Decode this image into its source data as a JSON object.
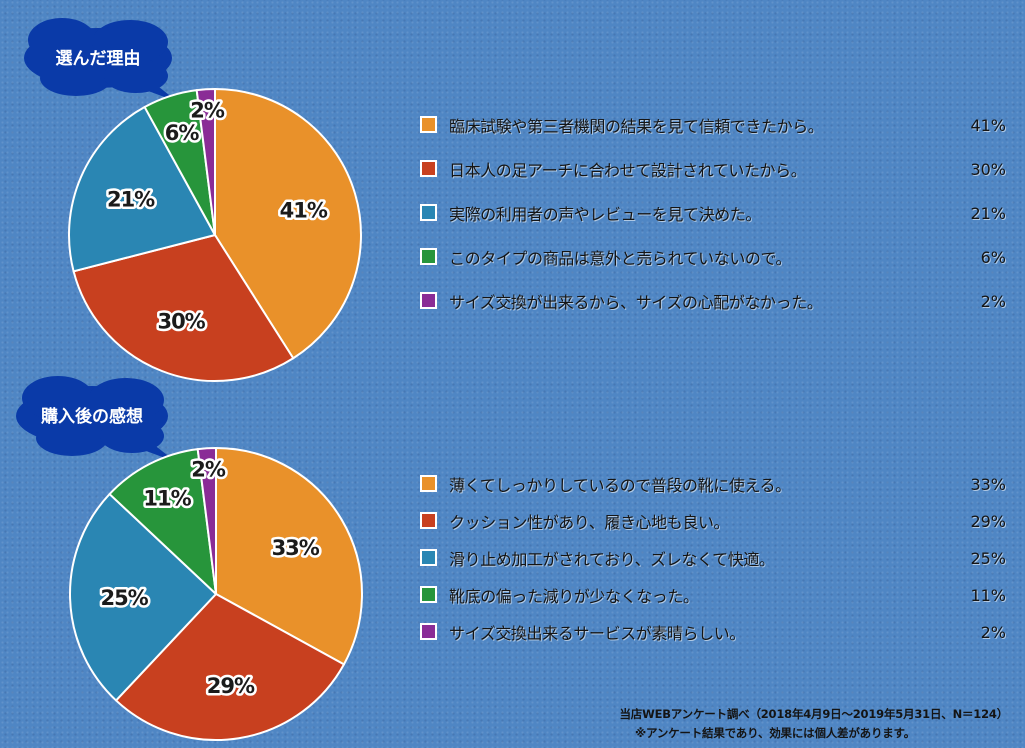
{
  "chart_data": [
    {
      "type": "pie",
      "title": "選んだ理由",
      "categories": [
        "臨床試験や第三者機関の結果を見て信頼できたから。",
        "日本人の足アーチに合わせて設計されていたから。",
        "実際の利用者の声やレビューを見て決めた。",
        "このタイプの商品は意外と売られていないので。",
        "サイズ交換が出来るから、サイズの心配がなかった。"
      ],
      "values": [
        41,
        30,
        21,
        6,
        2
      ],
      "labels": [
        "41%",
        "30%",
        "21%",
        "6%",
        "2%"
      ],
      "colors": [
        "#e9912a",
        "#c8401f",
        "#2a86b3",
        "#27953b",
        "#8a2c96"
      ],
      "legend": "right"
    },
    {
      "type": "pie",
      "title": "購入後の感想",
      "categories": [
        "薄くてしっかりしているので普段の靴に使える。",
        "クッション性があり、履き心地も良い。",
        "滑り止め加工がされており、ズレなくて快適。",
        "靴底の偏った減りが少なくなった。",
        "サイズ交換出来るサービスが素晴らしい。"
      ],
      "values": [
        33,
        29,
        25,
        11,
        2
      ],
      "labels": [
        "33%",
        "29%",
        "25%",
        "11%",
        "2%"
      ],
      "colors": [
        "#e9912a",
        "#c8401f",
        "#2a86b3",
        "#27953b",
        "#8a2c96"
      ],
      "legend": "right"
    }
  ],
  "footnote": {
    "line1": "当店WEBアンケート調べ（2018年4月9日〜2019年5月31日、N＝124）",
    "line2": "※アンケート結果であり、効果には個人差があります。"
  }
}
